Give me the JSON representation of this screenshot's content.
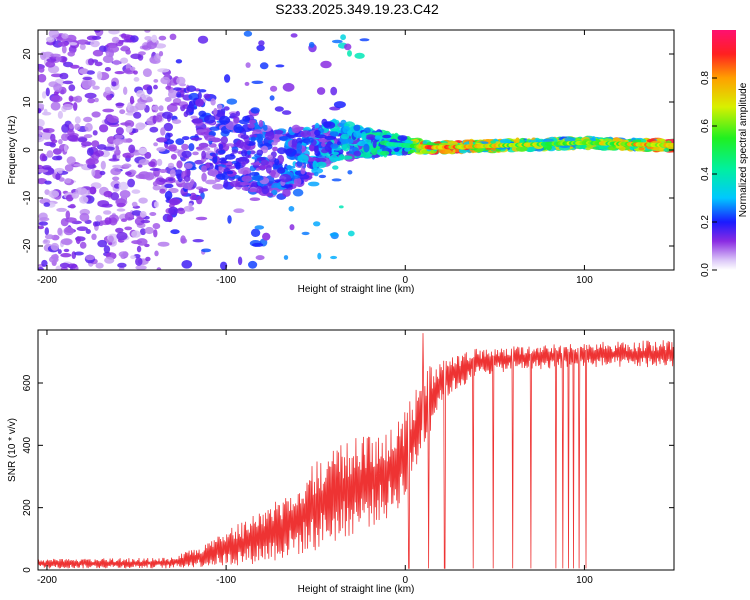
{
  "title": "S233.2025.349.19.23.C42",
  "chart_data": [
    {
      "type": "heatmap",
      "xlabel": "Height of straight line (km)",
      "ylabel": "Frequency (Hz)",
      "xlim": [
        -205,
        150
      ],
      "ylim": [
        -25,
        25
      ],
      "xticks": [
        -200,
        -100,
        0,
        100
      ],
      "yticks": [
        -20,
        -10,
        0,
        10,
        20
      ],
      "colorbar": {
        "label": "Normalized spectral amplitude",
        "range": [
          0,
          1
        ],
        "ticks": [
          "0.0",
          "0.2",
          "0.4",
          "0.6",
          "0.8"
        ]
      },
      "description_points": [
        {
          "x": -170,
          "f": 0,
          "amp": 0.12,
          "f_spread": 25
        },
        {
          "x": -100,
          "f": 1,
          "amp": 0.2,
          "f_spread": 8
        },
        {
          "x": -70,
          "f": -3,
          "amp": 0.22,
          "f_spread": 7
        },
        {
          "x": -40,
          "f": 2,
          "amp": 0.3,
          "f_spread": 4
        },
        {
          "x": 0,
          "f": 1,
          "amp": 0.45,
          "f_spread": 1.5
        },
        {
          "x": 15,
          "f": 0.5,
          "amp": 0.85,
          "f_spread": 1
        },
        {
          "x": 60,
          "f": 1,
          "amp": 0.65,
          "f_spread": 1
        },
        {
          "x": 100,
          "f": 1.5,
          "amp": 0.6,
          "f_spread": 1
        },
        {
          "x": 145,
          "f": 1,
          "amp": 0.8,
          "f_spread": 1
        }
      ]
    },
    {
      "type": "line",
      "xlabel": "Height of straight line (km)",
      "ylabel": "SNR (10 * v/v)",
      "xlim": [
        -205,
        150
      ],
      "ylim": [
        0,
        770
      ],
      "xticks": [
        -200,
        -100,
        0,
        100
      ],
      "yticks": [
        0,
        200,
        400,
        600
      ],
      "color": "#ee3333",
      "envelope": [
        {
          "x": -205,
          "lo": 5,
          "hi": 35
        },
        {
          "x": -130,
          "lo": 5,
          "hi": 40
        },
        {
          "x": -110,
          "lo": 10,
          "hi": 90
        },
        {
          "x": -90,
          "lo": 15,
          "hi": 160
        },
        {
          "x": -70,
          "lo": 30,
          "hi": 230
        },
        {
          "x": -50,
          "lo": 60,
          "hi": 360
        },
        {
          "x": -30,
          "lo": 110,
          "hi": 420
        },
        {
          "x": -10,
          "lo": 160,
          "hi": 470
        },
        {
          "x": 0,
          "lo": 220,
          "hi": 520
        },
        {
          "x": 10,
          "lo": 380,
          "hi": 640
        },
        {
          "x": 20,
          "lo": 540,
          "hi": 680
        },
        {
          "x": 40,
          "lo": 620,
          "hi": 710
        },
        {
          "x": 60,
          "lo": 640,
          "hi": 720
        },
        {
          "x": 100,
          "lo": 650,
          "hi": 730
        },
        {
          "x": 150,
          "lo": 650,
          "hi": 740
        }
      ],
      "dropouts": [
        2,
        13,
        22,
        38,
        49,
        60,
        70,
        84,
        88,
        91,
        94,
        97,
        101
      ],
      "spikes": [
        {
          "x": 10,
          "y": 760
        }
      ]
    }
  ]
}
